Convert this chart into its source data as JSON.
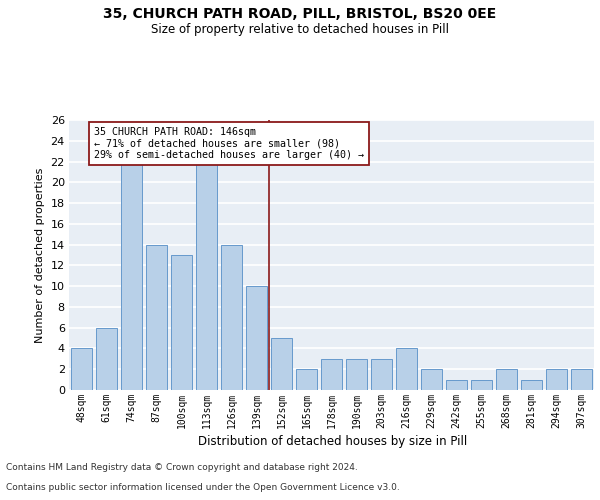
{
  "title": "35, CHURCH PATH ROAD, PILL, BRISTOL, BS20 0EE",
  "subtitle": "Size of property relative to detached houses in Pill",
  "xlabel": "Distribution of detached houses by size in Pill",
  "ylabel": "Number of detached properties",
  "categories": [
    "48sqm",
    "61sqm",
    "74sqm",
    "87sqm",
    "100sqm",
    "113sqm",
    "126sqm",
    "139sqm",
    "152sqm",
    "165sqm",
    "178sqm",
    "190sqm",
    "203sqm",
    "216sqm",
    "229sqm",
    "242sqm",
    "255sqm",
    "268sqm",
    "281sqm",
    "294sqm",
    "307sqm"
  ],
  "values": [
    4,
    6,
    22,
    14,
    13,
    22,
    14,
    10,
    5,
    2,
    3,
    3,
    3,
    4,
    2,
    1,
    1,
    2,
    1,
    2,
    2
  ],
  "bar_color": "#b8d0e8",
  "bar_edge_color": "#6699cc",
  "bar_edge_width": 0.7,
  "vline_color": "#8b1a1a",
  "vline_x": 7.5,
  "annotation_text": "35 CHURCH PATH ROAD: 146sqm\n← 71% of detached houses are smaller (98)\n29% of semi-detached houses are larger (40) →",
  "annotation_box_color": "#ffffff",
  "annotation_box_edge": "#8b1a1a",
  "ylim": [
    0,
    26
  ],
  "yticks": [
    0,
    2,
    4,
    6,
    8,
    10,
    12,
    14,
    16,
    18,
    20,
    22,
    24,
    26
  ],
  "bg_color": "#e8eef5",
  "grid_color": "#ffffff",
  "footer_line1": "Contains HM Land Registry data © Crown copyright and database right 2024.",
  "footer_line2": "Contains public sector information licensed under the Open Government Licence v3.0."
}
